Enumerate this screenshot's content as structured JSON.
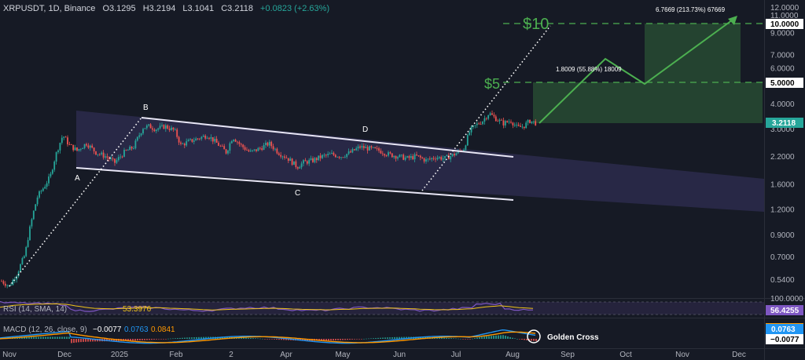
{
  "header": {
    "symbol": "XRPUSDT, 1D, Binance",
    "open": "O3.1295",
    "high": "H3.2194",
    "low": "L3.1041",
    "close": "C3.2118",
    "change": "+0.0823 (+2.63%)"
  },
  "colors": {
    "background": "#161a25",
    "up": "#26a69a",
    "down": "#ef5350",
    "channel": "#5b4f9e",
    "target": "#4caf50",
    "rsi": "#7e57c2",
    "macd": "#2196f3",
    "signal": "#ff9800"
  },
  "price_axis": {
    "scale": "log",
    "range": [
      0.42,
      12.5
    ],
    "ticks": [
      "12.0000",
      "11.0000",
      "10.0000",
      "9.0000",
      "7.0000",
      "6.0000",
      "5.0000",
      "4.0000",
      "3.0000",
      "2.2000",
      "1.6000",
      "1.2000",
      "0.9000",
      "0.7000",
      "0.5400"
    ],
    "current_price": "3.2118",
    "target_labels": [
      "10.0000",
      "5.0000"
    ]
  },
  "time_axis": {
    "labels": [
      "Nov",
      "Dec",
      "2025",
      "Feb",
      "2",
      "Apr",
      "May",
      "Jun",
      "Jul",
      "Aug",
      "Sep",
      "Oct",
      "Nov",
      "Dec"
    ]
  },
  "pattern_points": {
    "A": "A",
    "B": "B",
    "C": "C",
    "D": "D"
  },
  "targets": {
    "ten": "$10",
    "five": "$5"
  },
  "measurements": {
    "first": "1.8009 (55.88%) 18009",
    "second": "6.7669 (213.73%) 67669"
  },
  "rsi": {
    "label": "RSI (14, SMA, 14)",
    "sma_value": "53.3976",
    "value": "56.4255",
    "axis_top": "100.0000"
  },
  "macd": {
    "label": "MACD (12, 26, close, 9)",
    "hist": "−0.0077",
    "macd": "0.0763",
    "signal": "0.0841",
    "macd_tag": "0.0763",
    "hist_tag": "−0.0077",
    "annotation": "Golden Cross"
  },
  "chart_data": {
    "type": "candlestick",
    "title": "",
    "price_scale": "log",
    "x": [
      "2024-11",
      "2024-12",
      "2025-01",
      "2025-02",
      "2025-03",
      "2025-04",
      "2025-05",
      "2025-06",
      "2025-07",
      "2025-08"
    ],
    "close_approx": [
      0.5,
      2.4,
      3.0,
      2.6,
      2.3,
      2.1,
      2.3,
      2.2,
      3.0,
      3.2
    ],
    "current_price": 3.2118,
    "target_levels": [
      5.0,
      10.0
    ],
    "rsi": 56.4255,
    "rsi_sma": 53.3976,
    "macd": 0.0763,
    "macd_signal": 0.0841,
    "macd_hist": -0.0077
  }
}
